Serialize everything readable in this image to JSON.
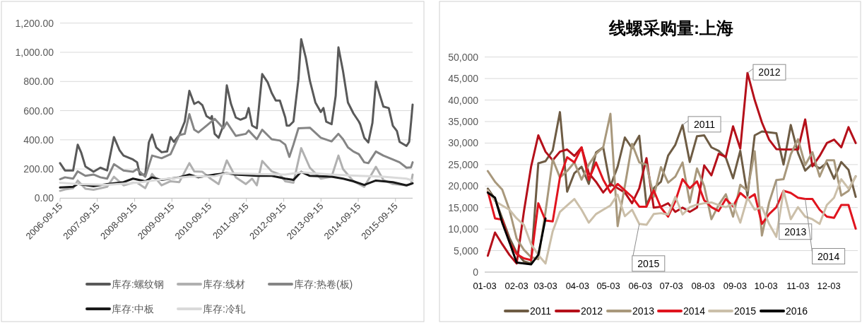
{
  "chart_data": [
    {
      "type": "line",
      "xlim": [
        "2006-09-15",
        "2016-03-01"
      ],
      "ylim": [
        0,
        1200
      ],
      "yticks": [
        {
          "value": 0,
          "label": "0.00"
        },
        {
          "value": 200,
          "label": "200.00"
        },
        {
          "value": 400,
          "label": "400.00"
        },
        {
          "value": 600,
          "label": "600.00"
        },
        {
          "value": 800,
          "label": "800.00"
        },
        {
          "value": 1000,
          "label": "1,000.00"
        },
        {
          "value": 1200,
          "label": "1,200.00"
        }
      ],
      "xticks": [
        {
          "value": "2006-09-15",
          "label": "2006-09-15"
        },
        {
          "value": "2007-09-15",
          "label": "2007-09-15"
        },
        {
          "value": "2008-09-15",
          "label": "2008-09-15"
        },
        {
          "value": "2009-09-15",
          "label": "2009-09-15"
        },
        {
          "value": "2010-09-15",
          "label": "2010-09-15"
        },
        {
          "value": "2011-09-15",
          "label": "2011-09-15"
        },
        {
          "value": "2012-09-15",
          "label": "2012-09-15"
        },
        {
          "value": "2013-09-15",
          "label": "2013-09-15"
        },
        {
          "value": "2014-09-15",
          "label": "2014-09-15"
        },
        {
          "value": "2015-09-15",
          "label": "2015-09-15"
        }
      ],
      "grid": "y",
      "legend": "bottom",
      "series": [
        {
          "name": "库存:螺纹钢",
          "color": "#595959",
          "x": [
            "2006-09-15",
            "2006-11-02",
            "2007-01-21",
            "2007-03-07",
            "2007-04-11",
            "2007-05-21",
            "2007-08-09",
            "2007-10-15",
            "2007-12-20",
            "2008-02-25",
            "2008-04-19",
            "2008-05-29",
            "2008-08-30",
            "2008-10-09",
            "2008-11-05",
            "2008-12-28",
            "2009-02-01",
            "2009-03-05",
            "2009-04-14",
            "2009-06-06",
            "2009-07-30",
            "2009-09-02",
            "2009-10-04",
            "2009-11-26",
            "2010-01-19",
            "2010-03-05",
            "2010-04-22",
            "2010-06-01",
            "2010-07-11",
            "2010-08-20",
            "2010-09-29",
            "2010-10-12",
            "2010-11-08",
            "2010-12-17",
            "2011-02-01",
            "2011-03-07",
            "2011-04-17",
            "2011-06-03",
            "2011-07-19",
            "2011-09-10",
            "2011-10-07",
            "2011-11-10",
            "2011-12-26",
            "2012-02-17",
            "2012-04-10",
            "2012-05-20",
            "2012-06-29",
            "2012-08-08",
            "2012-09-30",
            "2012-10-14",
            "2012-11-09",
            "2012-12-19",
            "2013-02-06",
            "2013-03-05",
            "2013-04-19",
            "2013-05-29",
            "2013-07-22",
            "2013-09-13",
            "2013-10-09",
            "2013-11-05",
            "2013-12-28",
            "2014-02-06",
            "2014-03-05",
            "2014-04-19",
            "2014-06-06",
            "2014-07-30",
            "2014-09-21",
            "2014-10-04",
            "2014-11-13",
            "2014-12-23",
            "2015-02-01",
            "2015-03-07",
            "2015-04-09",
            "2015-05-19",
            "2015-07-11",
            "2015-08-20",
            "2015-09-29",
            "2015-10-25",
            "2016-01-01",
            "2016-01-27",
            "2016-02-14",
            "2016-03-01"
          ],
          "values": [
            240,
            190,
            190,
            367,
            311,
            218,
            181,
            209,
            190,
            419,
            330,
            292,
            265,
            246,
            162,
            162,
            382,
            436,
            348,
            315,
            320,
            419,
            386,
            432,
            525,
            736,
            646,
            661,
            637,
            563,
            544,
            563,
            441,
            414,
            497,
            773,
            646,
            553,
            538,
            553,
            618,
            497,
            479,
            851,
            795,
            721,
            669,
            669,
            553,
            497,
            497,
            525,
            814,
            1090,
            963,
            805,
            656,
            591,
            618,
            525,
            507,
            702,
            1034,
            870,
            656,
            581,
            525,
            507,
            414,
            382,
            516,
            799,
            721,
            628,
            618,
            497,
            460,
            386,
            358,
            386,
            516,
            642
          ]
        },
        {
          "name": "库存:线材",
          "color": "#b0b0b0",
          "x": [
            "2006-09-15",
            "2006-11-02",
            "2007-01-21",
            "2007-03-07",
            "2007-05-21",
            "2007-08-09",
            "2007-12-20",
            "2008-02-25",
            "2008-05-29",
            "2008-08-30",
            "2008-10-09",
            "2008-12-28",
            "2009-03-05",
            "2009-06-06",
            "2009-09-02",
            "2009-11-26",
            "2010-03-05",
            "2010-04-22",
            "2010-07-11",
            "2010-09-29",
            "2010-12-17",
            "2011-03-07",
            "2011-06-03",
            "2011-09-10",
            "2011-11-10",
            "2011-12-26",
            "2012-02-17",
            "2012-05-20",
            "2012-08-08",
            "2012-09-30",
            "2012-12-19",
            "2013-03-05",
            "2013-05-29",
            "2013-09-13",
            "2013-12-28",
            "2014-03-05",
            "2014-04-19",
            "2014-07-30",
            "2014-11-13",
            "2015-03-07",
            "2015-05-19",
            "2015-08-20",
            "2016-01-01",
            "2016-02-14",
            "2016-03-01"
          ],
          "values": [
            50,
            60,
            69,
            121,
            65,
            58,
            78,
            147,
            88,
            106,
            106,
            69,
            166,
            88,
            116,
            110,
            240,
            184,
            181,
            134,
            97,
            259,
            143,
            97,
            134,
            88,
            255,
            184,
            162,
            116,
            106,
            343,
            209,
            134,
            147,
            292,
            199,
            116,
            78,
            215,
            125,
            97,
            88,
            97,
            162
          ]
        },
        {
          "name": "库存:热卷(板)",
          "color": "#858585",
          "x": [
            "2006-09-15",
            "2006-11-02",
            "2007-01-21",
            "2007-03-07",
            "2007-05-21",
            "2007-08-09",
            "2007-10-15",
            "2007-12-20",
            "2008-02-25",
            "2008-05-29",
            "2008-08-30",
            "2008-10-09",
            "2008-12-28",
            "2009-03-05",
            "2009-06-06",
            "2009-09-02",
            "2009-11-26",
            "2010-01-19",
            "2010-03-05",
            "2010-04-22",
            "2010-06-01",
            "2010-08-20",
            "2010-11-08",
            "2011-02-01",
            "2011-03-07",
            "2011-06-03",
            "2011-09-10",
            "2011-10-07",
            "2011-12-26",
            "2012-02-17",
            "2012-05-20",
            "2012-08-08",
            "2012-09-30",
            "2012-11-09",
            "2012-12-19",
            "2013-02-06",
            "2013-05-29",
            "2013-09-13",
            "2013-12-28",
            "2014-03-05",
            "2014-04-19",
            "2014-06-06",
            "2014-07-30",
            "2014-09-21",
            "2014-11-13",
            "2014-12-23",
            "2015-03-07",
            "2015-05-19",
            "2015-08-20",
            "2015-10-25",
            "2016-01-01",
            "2016-02-14",
            "2016-03-01"
          ],
          "values": [
            130,
            143,
            134,
            184,
            153,
            162,
            143,
            134,
            233,
            190,
            181,
            199,
            147,
            292,
            274,
            302,
            432,
            441,
            576,
            469,
            451,
            497,
            544,
            479,
            520,
            427,
            441,
            464,
            404,
            469,
            404,
            395,
            367,
            283,
            367,
            479,
            483,
            414,
            389,
            441,
            404,
            348,
            320,
            302,
            246,
            240,
            320,
            292,
            265,
            246,
            209,
            212,
            246
          ]
        },
        {
          "name": "库存:中板",
          "color": "#1a1a1a",
          "x": [
            "2006-09-15",
            "2007-01-21",
            "2007-03-07",
            "2007-08-09",
            "2007-12-20",
            "2008-05-29",
            "2008-08-30",
            "2008-12-28",
            "2009-03-05",
            "2009-06-06",
            "2009-11-26",
            "2010-03-05",
            "2010-06-01",
            "2010-11-08",
            "2011-03-07",
            "2011-06-03",
            "2011-12-26",
            "2012-05-20",
            "2012-09-30",
            "2012-12-19",
            "2013-03-05",
            "2013-05-29",
            "2013-12-28",
            "2014-04-19",
            "2014-07-30",
            "2014-11-13",
            "2015-03-07",
            "2015-08-20",
            "2016-01-01",
            "2016-03-01"
          ],
          "values": [
            73,
            78,
            97,
            82,
            97,
            110,
            134,
            116,
            143,
            125,
            143,
            162,
            143,
            162,
            171,
            162,
            153,
            153,
            134,
            125,
            181,
            153,
            147,
            134,
            116,
            91,
            121,
            110,
            88,
            102
          ]
        },
        {
          "name": "库存:冷轧",
          "color": "#dadada",
          "x": [
            "2006-09-15",
            "2007-03-07",
            "2007-12-20",
            "2008-10-09",
            "2009-06-06",
            "2010-03-05",
            "2010-11-08",
            "2011-03-07",
            "2011-12-26",
            "2012-09-30",
            "2013-03-05",
            "2013-12-28",
            "2014-09-21",
            "2015-05-19",
            "2016-01-01",
            "2016-03-01"
          ],
          "values": [
            106,
            97,
            91,
            106,
            129,
            147,
            151,
            171,
            166,
            162,
            177,
            162,
            153,
            147,
            134,
            121
          ]
        }
      ]
    },
    {
      "type": "line",
      "title": "线螺采购量:上海",
      "xlim": [
        "--01-03",
        "--12-31"
      ],
      "ylim": [
        0,
        50000
      ],
      "yticks": [
        0,
        {
          "value": 5000,
          "label": "5,000"
        },
        {
          "value": 10000,
          "label": "10,000"
        },
        {
          "value": 15000,
          "label": "15,000"
        },
        {
          "value": 20000,
          "label": "20,000"
        },
        {
          "value": 25000,
          "label": "25,000"
        },
        {
          "value": 30000,
          "label": "30,000"
        },
        {
          "value": 35000,
          "label": "35,000"
        },
        {
          "value": 40000,
          "label": "40,000"
        },
        {
          "value": 45000,
          "label": "45,000"
        },
        {
          "value": 50000,
          "label": "50,000"
        }
      ],
      "xticks": [
        {
          "value": "--01-03",
          "label": "01-03"
        },
        {
          "value": "--02-03",
          "label": "02-03"
        },
        {
          "value": "--03-03",
          "label": "03-03"
        },
        {
          "value": "--04-03",
          "label": "04-03"
        },
        {
          "value": "--05-03",
          "label": "05-03"
        },
        {
          "value": "--06-03",
          "label": "06-03"
        },
        {
          "value": "--07-03",
          "label": "07-03"
        },
        {
          "value": "--08-03",
          "label": "08-03"
        },
        {
          "value": "--09-03",
          "label": "09-03"
        },
        {
          "value": "--10-03",
          "label": "10-03"
        },
        {
          "value": "--11-03",
          "label": "11-03"
        },
        {
          "value": "--12-03",
          "label": "12-03"
        }
      ],
      "grid": "y",
      "legend": "bottom",
      "x": [
        "--01-06",
        "--01-13",
        "--01-20",
        "--01-27",
        "--02-03",
        "--02-10",
        "--02-17",
        "--02-24",
        "--03-03",
        "--03-10",
        "--03-17",
        "--03-24",
        "--03-31",
        "--04-07",
        "--04-14",
        "--04-21",
        "--04-28",
        "--05-05",
        "--05-12",
        "--05-19",
        "--05-26",
        "--06-02",
        "--06-09",
        "--06-16",
        "--06-23",
        "--06-30",
        "--07-07",
        "--07-14",
        "--07-21",
        "--07-28",
        "--08-04",
        "--08-11",
        "--08-18",
        "--08-25",
        "--09-01",
        "--09-08",
        "--09-15",
        "--09-22",
        "--09-29",
        "--10-06",
        "--10-13",
        "--10-20",
        "--10-27",
        "--11-03",
        "--11-10",
        "--11-17",
        "--11-24",
        "--12-01",
        "--12-08",
        "--12-15",
        "--12-22",
        "--12-29"
      ],
      "series": [
        {
          "name": "2011",
          "color": "#6e5c44",
          "values": [
            19400,
            17000,
            12500,
            8000,
            4500,
            2500,
            2000,
            25300,
            25800,
            28300,
            37200,
            18700,
            23000,
            24500,
            20500,
            27800,
            29000,
            20000,
            24500,
            31300,
            28800,
            31700,
            15500,
            19500,
            21000,
            27100,
            29600,
            34200,
            25600,
            31600,
            31800,
            29000,
            28200,
            26600,
            21800,
            28200,
            17800,
            31800,
            32700,
            32500,
            32300,
            25000,
            34200,
            27700,
            23600,
            25200,
            24100,
            25400,
            21700,
            25600,
            23800,
            17500
          ]
        },
        {
          "name": "2012",
          "color": "#b5101a",
          "values": [
            3800,
            9200,
            6500,
            4000,
            2000,
            14000,
            24500,
            31800,
            28000,
            26000,
            28000,
            28500,
            27000,
            29000,
            23000,
            21000,
            18500,
            20500,
            19500,
            18500,
            16000,
            19500,
            26500,
            15000,
            15200,
            16000,
            14000,
            15000,
            14000,
            15000,
            24800,
            22500,
            27500,
            26800,
            33900,
            28700,
            46300,
            40000,
            34800,
            30800,
            28600,
            28500,
            28500,
            28500,
            35500,
            24600,
            27000,
            30000,
            30800,
            29000,
            33700,
            30000
          ]
        },
        {
          "name": "2013",
          "color": "#a8987c",
          "values": [
            23500,
            21000,
            19200,
            14500,
            7800,
            5200,
            3500,
            3000,
            14000,
            26200,
            22000,
            23500,
            25500,
            21500,
            25000,
            27500,
            29000,
            36800,
            10700,
            20000,
            29800,
            25500,
            25000,
            17500,
            24400,
            20800,
            22200,
            25500,
            16200,
            24100,
            20000,
            12300,
            15600,
            18100,
            12900,
            20300,
            18900,
            28100,
            8500,
            16200,
            21400,
            21600,
            27400,
            30900,
            24900,
            27900,
            22200,
            26000,
            26000,
            17800,
            18900,
            22300
          ]
        },
        {
          "name": "2014",
          "color": "#e0141e",
          "values": [
            18800,
            12500,
            12200,
            7000,
            4200,
            3200,
            2800,
            16000,
            12000,
            11800,
            22000,
            26700,
            25500,
            29000,
            21500,
            25500,
            21500,
            18500,
            20500,
            19000,
            17500,
            15200,
            15200,
            19000,
            15000,
            12900,
            16500,
            21600,
            19500,
            21100,
            16700,
            15100,
            14200,
            17000,
            15300,
            18400,
            17000,
            18100,
            11200,
            13500,
            15100,
            18900,
            18400,
            17300,
            17000,
            17000,
            14500,
            12900,
            12600,
            15600,
            15600,
            10100
          ]
        },
        {
          "name": "2015",
          "color": "#cbbfa9",
          "values": [
            19000,
            16500,
            15500,
            14500,
            12500,
            11000,
            6500,
            4000,
            2000,
            9500,
            14000,
            15500,
            17000,
            14500,
            11500,
            13500,
            14500,
            15500,
            18000,
            13000,
            14500,
            11200,
            11000,
            13500,
            13700,
            13400,
            17500,
            13400,
            15100,
            15700,
            16000,
            16200,
            15600,
            15100,
            15900,
            11500,
            17300,
            14500,
            15100,
            11200,
            8200,
            18900,
            12300,
            15100,
            12900,
            12300,
            11200,
            15600,
            17300,
            21600,
            19400,
            22200
          ]
        },
        {
          "name": "2016",
          "color": "#000000",
          "x": [
            "--01-06",
            "--01-13",
            "--01-20",
            "--01-27",
            "--02-03",
            "--02-10",
            "--02-17",
            "--02-24",
            "--03-03"
          ],
          "values": [
            18500,
            17300,
            11500,
            7000,
            2200,
            2000,
            1800,
            4000,
            12500
          ]
        }
      ],
      "annotations": [
        {
          "text": "2011",
          "x": "--07-14",
          "y": 34200
        },
        {
          "text": "2012",
          "x": "--09-15",
          "y": 46300
        },
        {
          "text": "2013",
          "x": "--10-13",
          "y": 21400
        },
        {
          "text": "2014",
          "x": "--11-10",
          "y": 17000
        },
        {
          "text": "2015",
          "x": "--06-02",
          "y": 11200
        }
      ]
    }
  ]
}
